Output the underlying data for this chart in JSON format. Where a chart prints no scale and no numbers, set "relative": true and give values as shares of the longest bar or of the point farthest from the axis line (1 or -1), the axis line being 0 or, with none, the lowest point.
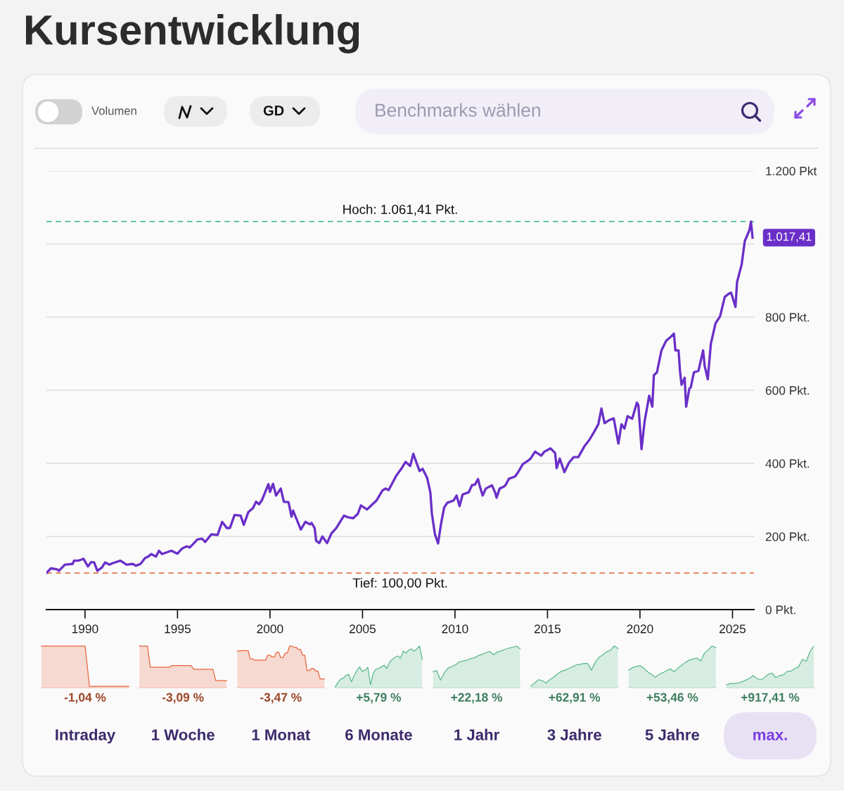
{
  "chart_data": [
    {
      "type": "other",
      "title": "Kursentwicklung",
      "annotations": [
        "Volumen",
        "GD",
        "Benchmarks wählen"
      ]
    },
    {
      "type": "line",
      "color": "#6a2fc8",
      "x": [
        "1987-12",
        "1988-03",
        "1988-07",
        "1988-08",
        "1988-12",
        "1989-05",
        "1989-06",
        "1989-09",
        "1989-12",
        "1990-03",
        "1990-05",
        "1990-07",
        "1990-09",
        "1990-12",
        "1991-02",
        "1991-05",
        "1991-07",
        "1991-12",
        "1992-04",
        "1992-08",
        "1992-10",
        "1993-01",
        "1993-04",
        "1993-06",
        "1993-08",
        "1993-11",
        "1994-01",
        "1994-03",
        "1994-09",
        "1995-01",
        "1995-04",
        "1995-07",
        "1995-09",
        "1996-02",
        "1996-05",
        "1996-07",
        "1996-11",
        "1997-03",
        "1997-06",
        "1997-09",
        "1997-11",
        "1998-02",
        "1998-06",
        "1998-08",
        "1998-11",
        "1999-02",
        "1999-04",
        "1999-06",
        "1999-08",
        "1999-12",
        "2000-01",
        "2000-03",
        "2000-05",
        "2000-08",
        "2000-10",
        "2001-01",
        "2001-03",
        "2001-04",
        "2001-06",
        "2001-09",
        "2001-12",
        "2002-03",
        "2002-04",
        "2002-06",
        "2002-07",
        "2002-09",
        "2002-11",
        "2003-02",
        "2003-05",
        "2003-08",
        "2004-01",
        "2004-04",
        "2004-07",
        "2004-10",
        "2004-12",
        "2005-04",
        "2005-10",
        "2006-02",
        "2006-04",
        "2006-06",
        "2006-11",
        "2007-02",
        "2007-05",
        "2007-08",
        "2007-10",
        "2008-02",
        "2008-04",
        "2008-07",
        "2008-09",
        "2008-10",
        "2008-12",
        "2009-02",
        "2009-04",
        "2009-06",
        "2009-08",
        "2009-12",
        "2010-02",
        "2010-04",
        "2010-06",
        "2010-10",
        "2010-12",
        "2011-02",
        "2011-04",
        "2011-05",
        "2011-07",
        "2011-09",
        "2012-01",
        "2012-03",
        "2012-04",
        "2012-06",
        "2012-09",
        "2012-10",
        "2012-12",
        "2013-04",
        "2013-06",
        "2013-09",
        "2013-12",
        "2014-02",
        "2014-05",
        "2014-09",
        "2014-11",
        "2015-03",
        "2015-06",
        "2015-07",
        "2015-09",
        "2015-12",
        "2016-03",
        "2016-06",
        "2016-09",
        "2017-01",
        "2017-04",
        "2017-07",
        "2017-10",
        "2017-12",
        "2018-02",
        "2018-05",
        "2018-08",
        "2018-10",
        "2018-11",
        "2019-01",
        "2019-03",
        "2019-05",
        "2019-08",
        "2019-11",
        "2019-12",
        "2020-02",
        "2020-04",
        "2020-07",
        "2020-09",
        "2020-10",
        "2020-12",
        "2021-03",
        "2021-06",
        "2021-09",
        "2021-11",
        "2021-12",
        "2022-02",
        "2022-03",
        "2022-04",
        "2022-06",
        "2022-07",
        "2022-09",
        "2022-10",
        "2022-12",
        "2023-03",
        "2023-06",
        "2023-07",
        "2023-09",
        "2023-11",
        "2024-02",
        "2024-05",
        "2024-08",
        "2024-10",
        "2024-12",
        "2025-01",
        "2025-03",
        "2025-04",
        "2025-07",
        "2025-09",
        "2025-12",
        "2026-01",
        "2026-02"
      ],
      "values": [
        100,
        113,
        110,
        106,
        123,
        125,
        134,
        134,
        139,
        118,
        130,
        129,
        106,
        115,
        129,
        123,
        127,
        134,
        123,
        125,
        120,
        125,
        141,
        145,
        152,
        145,
        161,
        152,
        161,
        153,
        167,
        173,
        170,
        192,
        194,
        185,
        206,
        204,
        240,
        223,
        223,
        259,
        257,
        232,
        267,
        278,
        295,
        288,
        301,
        343,
        322,
        344,
        312,
        331,
        295,
        294,
        254,
        271,
        250,
        219,
        240,
        233,
        237,
        223,
        188,
        182,
        200,
        182,
        209,
        223,
        257,
        252,
        250,
        262,
        285,
        274,
        298,
        326,
        331,
        327,
        367,
        384,
        404,
        393,
        426,
        379,
        385,
        360,
        321,
        263,
        206,
        181,
        235,
        279,
        292,
        298,
        312,
        283,
        315,
        321,
        340,
        342,
        357,
        340,
        312,
        331,
        340,
        321,
        306,
        331,
        337,
        342,
        358,
        364,
        376,
        398,
        406,
        413,
        432,
        421,
        432,
        441,
        428,
        387,
        413,
        376,
        402,
        417,
        417,
        447,
        463,
        484,
        507,
        550,
        510,
        518,
        523,
        477,
        454,
        507,
        495,
        529,
        522,
        566,
        559,
        439,
        514,
        585,
        555,
        641,
        649,
        709,
        735,
        746,
        755,
        709,
        709,
        653,
        615,
        634,
        555,
        604,
        608,
        649,
        653,
        709,
        667,
        630,
        727,
        783,
        802,
        855,
        862,
        867,
        855,
        828,
        896,
        944,
        1008,
        1038,
        1061.41,
        1017.41
      ],
      "xlim": [
        "1987-12",
        "2026-03"
      ],
      "xticks": [
        "1990",
        "1995",
        "2000",
        "2005",
        "2010",
        "2015",
        "2020",
        "2025"
      ],
      "ylim": [
        0,
        1200
      ],
      "yticks": [
        {
          "value": 0,
          "label": "0 Pkt."
        },
        {
          "value": 200,
          "label": "200 Pkt."
        },
        {
          "value": 400,
          "label": "400 Pkt."
        },
        {
          "value": 600,
          "label": "600 Pkt."
        },
        {
          "value": 800,
          "label": "800 Pkt."
        },
        {
          "value": 1000,
          "label": null
        },
        {
          "value": 1200,
          "label": "1.200 Pkt"
        }
      ],
      "grid": "y",
      "ref_lines": [
        {
          "axis": "y",
          "value": 1061.41,
          "label": "Hoch: 1.061,41 Pkt.",
          "color": "#4dbb93",
          "line_style": "dashed"
        },
        {
          "axis": "y",
          "value": 100,
          "label": "Tief: 100,00 Pkt.",
          "color": "#e8602c",
          "line_style": "dashed"
        }
      ],
      "annotations": [
        {
          "text": "1.017,41",
          "x": "2026-02",
          "y": 1017.41
        }
      ]
    },
    {
      "type": "area",
      "relative": true,
      "color": "#e8653c",
      "xlabel": "-1,04 %",
      "title": "Intraday",
      "categories": [
        null,
        null,
        null,
        null,
        null,
        null,
        null,
        null,
        null,
        null,
        null,
        null,
        null,
        null,
        null,
        null,
        null,
        null,
        null,
        null,
        null
      ],
      "values": [
        1,
        1,
        1,
        1,
        1,
        1,
        1,
        1,
        1,
        1,
        1,
        0.03,
        0.03,
        0.03,
        0.03,
        0.03,
        0.03,
        0.03,
        0.03,
        0.03,
        0.03
      ]
    },
    {
      "type": "area",
      "relative": true,
      "color": "#e8653c",
      "xlabel": "-3,09 %",
      "title": "1 Woche",
      "categories": [
        null,
        null,
        null,
        null,
        null,
        null,
        null,
        null,
        null,
        null,
        null,
        null,
        null,
        null,
        null,
        null,
        null,
        null,
        null,
        null,
        null,
        null,
        null,
        null,
        null,
        null,
        null,
        null,
        null,
        null,
        null,
        null,
        null
      ],
      "values": [
        1,
        1,
        1,
        1,
        0.49,
        0.49,
        0.49,
        0.49,
        0.49,
        0.49,
        0.49,
        0.49,
        0.53,
        0.53,
        0.53,
        0.53,
        0.53,
        0.53,
        0.53,
        0.53,
        0.44,
        0.44,
        0.44,
        0.44,
        0.44,
        0.44,
        0.44,
        0.44,
        0.17,
        0.17,
        0.17,
        0.17,
        0.17
      ]
    },
    {
      "type": "area",
      "relative": true,
      "color": "#e8653c",
      "xlabel": "-3,47 %",
      "title": "1 Monat",
      "categories": [
        null,
        null,
        null,
        null,
        null,
        null,
        null,
        null,
        null,
        null,
        null,
        null,
        null,
        null,
        null,
        null,
        null,
        null,
        null,
        null,
        null,
        null,
        null,
        null,
        null,
        null,
        null,
        null,
        null,
        null,
        null,
        null,
        null,
        null,
        null,
        null,
        null,
        null,
        null,
        null,
        null
      ],
      "values": [
        0.88,
        0.88,
        0.89,
        0.89,
        0.89,
        0.89,
        0.69,
        0.69,
        0.66,
        0.66,
        0.66,
        0.66,
        0.66,
        0.66,
        0.78,
        0.78,
        0.74,
        0.74,
        0.85,
        0.85,
        0.72,
        0.72,
        0.83,
        0.83,
        1,
        1,
        0.97,
        0.97,
        0.92,
        0.92,
        0.78,
        0.78,
        0.41,
        0.41,
        0.46,
        0.46,
        0.4,
        0.4,
        0.21,
        0.21,
        0.21
      ]
    },
    {
      "type": "area",
      "relative": true,
      "color": "#5bb98b",
      "xlabel": "+5,79 %",
      "title": "6 Monate",
      "categories": [
        null,
        null,
        null,
        null,
        null,
        null,
        null,
        null,
        null,
        null,
        null,
        null,
        null,
        null,
        null,
        null,
        null,
        null,
        null,
        null,
        null,
        null,
        null,
        null,
        null,
        null,
        null,
        null,
        null,
        null,
        null,
        null,
        null
      ],
      "values": [
        0.01,
        0.12,
        0.2,
        0.23,
        0.29,
        0.32,
        0.14,
        0.29,
        0.41,
        0.5,
        0.39,
        0.42,
        0.49,
        0.07,
        0.35,
        0.44,
        0.46,
        0.5,
        0.54,
        0.46,
        0.61,
        0.68,
        0.73,
        0.76,
        0.71,
        0.88,
        0.83,
        0.9,
        0.93,
        0.88,
        0.93,
        1,
        0.68
      ]
    },
    {
      "type": "area",
      "relative": true,
      "color": "#5bb98b",
      "xlabel": "+22,18 %",
      "title": "1 Jahr",
      "categories": [
        null,
        null,
        null,
        null,
        null,
        null,
        null,
        null,
        null,
        null,
        null,
        null,
        null,
        null,
        null,
        null,
        null,
        null,
        null,
        null,
        null,
        null,
        null,
        null
      ],
      "values": [
        0.38,
        0.41,
        0.18,
        0.36,
        0.47,
        0.51,
        0.55,
        0.62,
        0.64,
        0.66,
        0.7,
        0.72,
        0.77,
        0.8,
        0.84,
        0.87,
        0.79,
        0.86,
        0.88,
        0.92,
        0.95,
        0.97,
        1,
        0.93
      ]
    },
    {
      "type": "area",
      "relative": true,
      "color": "#5bb98b",
      "xlabel": "+62,91 %",
      "title": "3 Jahre",
      "categories": [
        null,
        null,
        null,
        null,
        null,
        null,
        null,
        null,
        null,
        null,
        null,
        null,
        null,
        null,
        null,
        null,
        null,
        null,
        null,
        null,
        null,
        null,
        null,
        null
      ],
      "values": [
        0.04,
        0.11,
        0.19,
        0.17,
        0.11,
        0.19,
        0.25,
        0.33,
        0.39,
        0.42,
        0.46,
        0.5,
        0.55,
        0.56,
        0.58,
        0.58,
        0.42,
        0.61,
        0.73,
        0.79,
        0.86,
        0.9,
        1,
        0.94
      ]
    },
    {
      "type": "area",
      "relative": true,
      "color": "#5bb98b",
      "xlabel": "+53,46 %",
      "title": "5 Jahre",
      "categories": [
        null,
        null,
        null,
        null,
        null,
        null,
        null,
        null,
        null,
        null,
        null,
        null,
        null,
        null,
        null,
        null,
        null,
        null,
        null,
        null,
        null,
        null,
        null,
        null
      ],
      "values": [
        0.42,
        0.48,
        0.51,
        0.53,
        0.47,
        0.38,
        0.32,
        0.25,
        0.32,
        0.36,
        0.41,
        0.45,
        0.38,
        0.47,
        0.54,
        0.61,
        0.66,
        0.69,
        0.71,
        0.64,
        0.83,
        0.91,
        1,
        0.96
      ]
    },
    {
      "type": "area",
      "relative": true,
      "color": "#5bb98b",
      "xlabel": "+917,41 %",
      "title": "max.",
      "categories": [
        null,
        null,
        null,
        null,
        null,
        null,
        null,
        null,
        null,
        null,
        null,
        null,
        null,
        null,
        null,
        null,
        null,
        null,
        null,
        null,
        null,
        null,
        null,
        null
      ],
      "values": [
        0.07,
        0.1,
        0.1,
        0.11,
        0.14,
        0.18,
        0.22,
        0.29,
        0.22,
        0.19,
        0.24,
        0.32,
        0.35,
        0.24,
        0.29,
        0.31,
        0.39,
        0.4,
        0.46,
        0.5,
        0.68,
        0.63,
        0.86,
        1
      ]
    }
  ]
}
